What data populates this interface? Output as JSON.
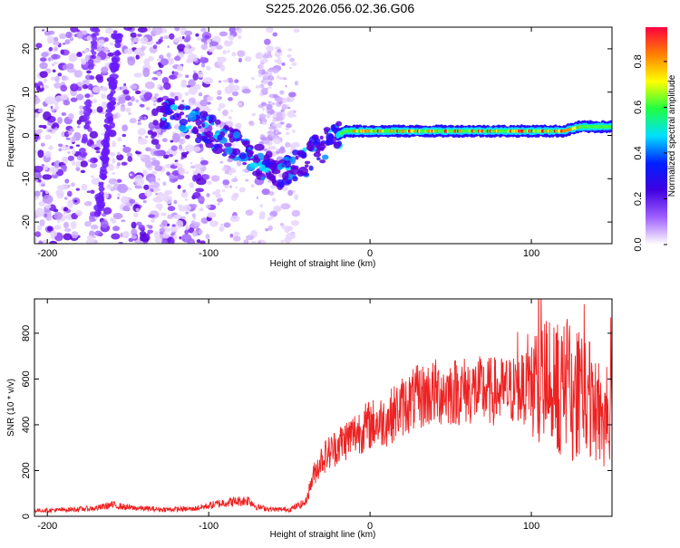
{
  "title": "S225.2026.056.02.36.G06",
  "chart_data": [
    {
      "type": "heatmap",
      "xlabel": "Height of straight line (km)",
      "ylabel": "Frequency (Hz)",
      "xlim": [
        -208,
        150
      ],
      "ylim": [
        -25,
        25
      ],
      "x_ticks": [
        -200,
        -100,
        0,
        100
      ],
      "y_ticks": [
        -20,
        -10,
        0,
        10,
        20
      ],
      "colorbar": {
        "label": "Normalized spectral amplitude",
        "range": [
          0,
          0.95
        ],
        "ticks": [
          0.0,
          0.2,
          0.4,
          0.6,
          0.8
        ],
        "colors": [
          "#ffffff",
          "#a060ff",
          "#4000e0",
          "#0020ff",
          "#00e0ff",
          "#20ff40",
          "#ffff00",
          "#ff8000",
          "#ff0040"
        ]
      },
      "ridge": {
        "note": "frequency ridge (Hz) vs height (km)",
        "x": [
          -130,
          -110,
          -95,
          -80,
          -65,
          -55,
          -50,
          -45,
          -40,
          -35,
          -30,
          -25,
          -20,
          -15,
          -10,
          0,
          20,
          50,
          90,
          110,
          120,
          130,
          140,
          150
        ],
        "y": [
          5,
          3,
          0,
          -3,
          -7,
          -9,
          -8,
          -7,
          -6,
          -4,
          -3,
          -1,
          0,
          1,
          1,
          1,
          1,
          1,
          1,
          1,
          1,
          2,
          2,
          2
        ]
      }
    },
    {
      "type": "line",
      "xlabel": "Height of straight line (km)",
      "ylabel": "SNR (10 * v/v)",
      "xlim": [
        -208,
        150
      ],
      "ylim": [
        0,
        950
      ],
      "x_ticks": [
        -200,
        -100,
        0,
        100
      ],
      "y_ticks": [
        0,
        200,
        400,
        600,
        800
      ],
      "color": "#ee2222",
      "series": [
        {
          "name": "SNR",
          "x": [
            -208,
            -190,
            -170,
            -160,
            -150,
            -130,
            -110,
            -90,
            -75,
            -70,
            -60,
            -50,
            -40,
            -35,
            -30,
            -20,
            -10,
            0,
            10,
            20,
            30,
            40,
            60,
            80,
            100,
            115,
            125,
            135,
            145,
            150
          ],
          "y": [
            25,
            28,
            35,
            50,
            38,
            30,
            32,
            60,
            70,
            40,
            30,
            30,
            60,
            180,
            250,
            310,
            360,
            400,
            420,
            480,
            520,
            540,
            550,
            545,
            560,
            570,
            540,
            500,
            450,
            420
          ]
        }
      ]
    }
  ]
}
